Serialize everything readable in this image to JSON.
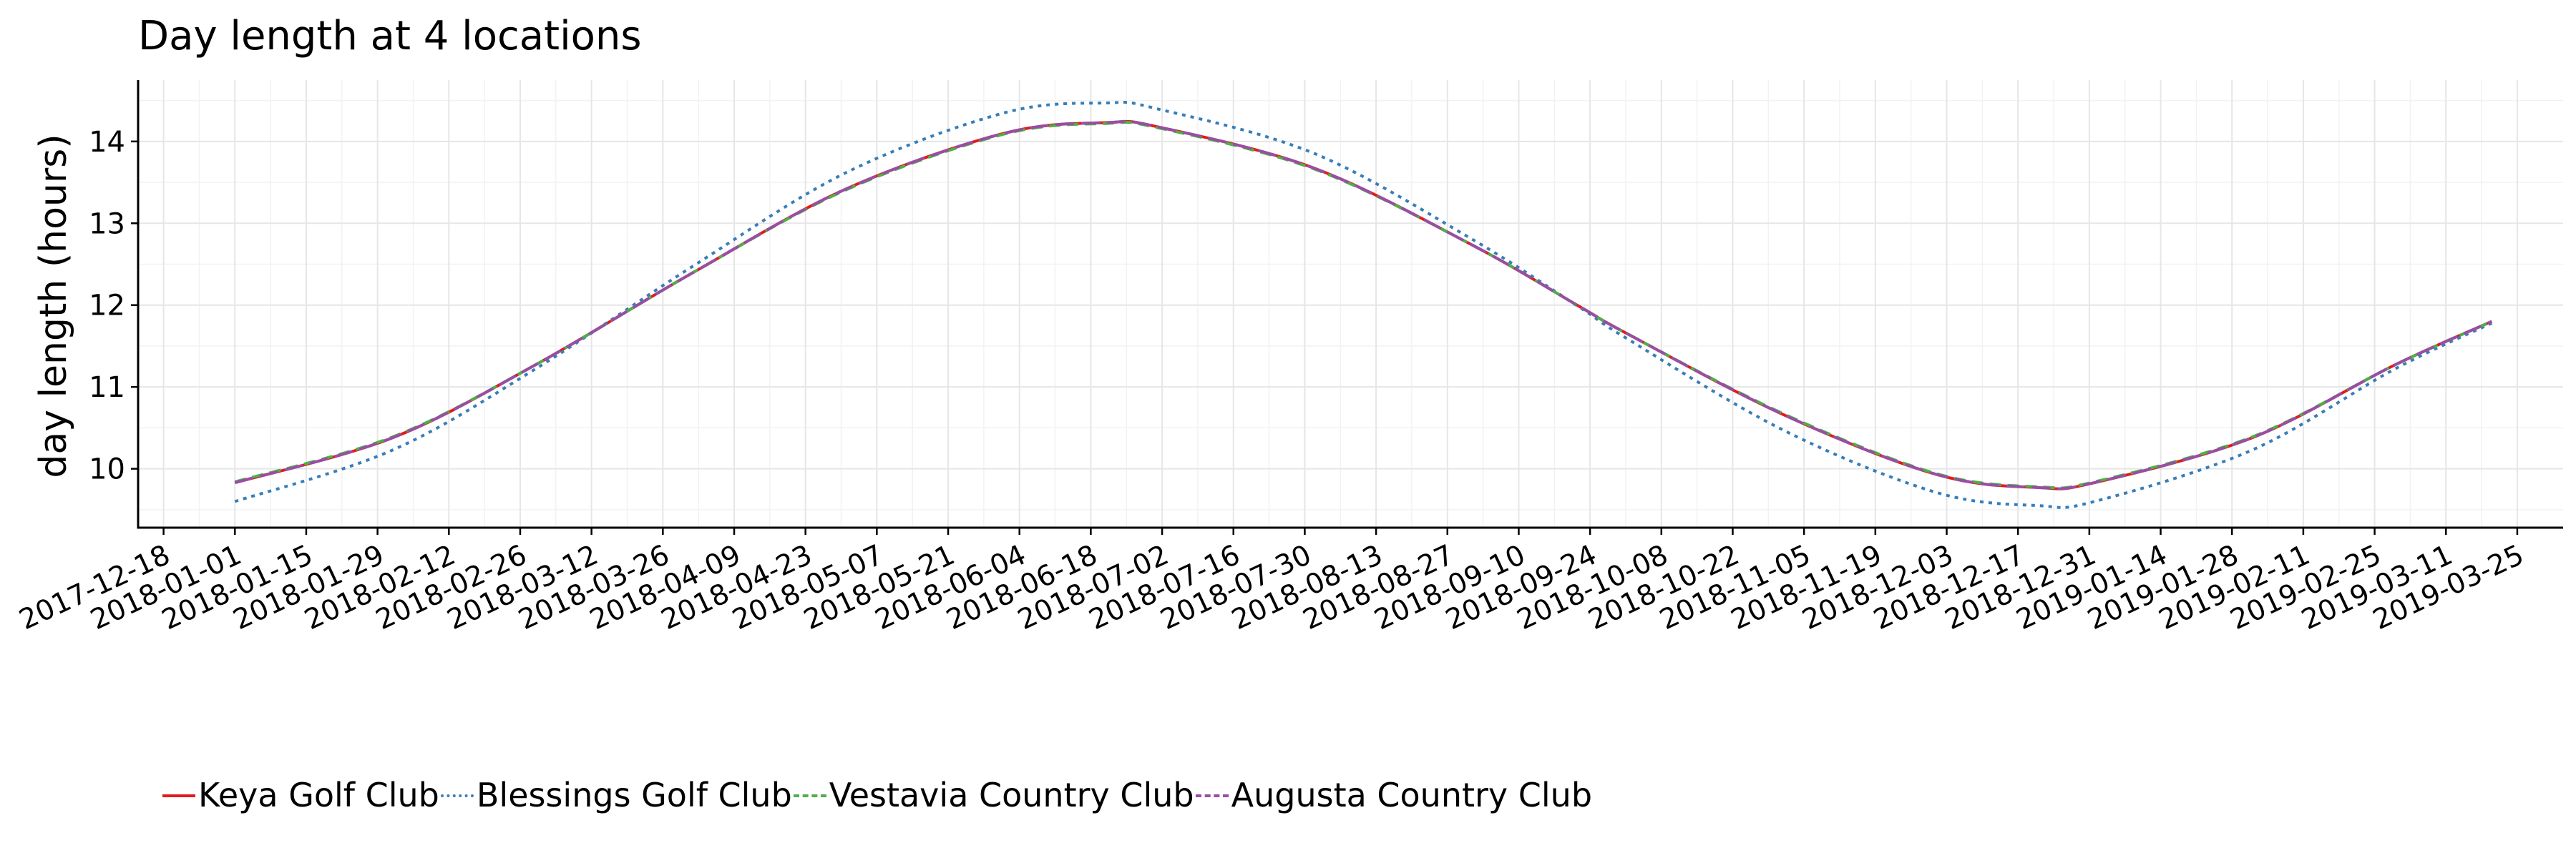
{
  "chart_data": {
    "type": "line",
    "title": "Day length at 4 locations",
    "xlabel": "",
    "ylabel": "day length (hours)",
    "x_ticks": [
      "2017-12-18",
      "2018-01-01",
      "2018-01-15",
      "2018-01-29",
      "2018-02-12",
      "2018-02-26",
      "2018-03-12",
      "2018-03-26",
      "2018-04-09",
      "2018-04-23",
      "2018-05-07",
      "2018-05-21",
      "2018-06-04",
      "2018-06-18",
      "2018-07-02",
      "2018-07-16",
      "2018-07-30",
      "2018-08-13",
      "2018-08-27",
      "2018-09-10",
      "2018-09-24",
      "2018-10-08",
      "2018-10-22",
      "2018-11-05",
      "2018-11-19",
      "2018-12-03",
      "2018-12-17",
      "2018-12-31",
      "2019-01-14",
      "2019-01-28",
      "2019-02-11",
      "2019-02-25",
      "2019-03-11",
      "2019-03-25"
    ],
    "y_ticks": [
      10,
      11,
      12,
      13,
      14
    ],
    "xlim": [
      "2017-12-13",
      "2019-04-03"
    ],
    "ylim": [
      9.28,
      14.75
    ],
    "x": [
      "2018-01-01",
      "2018-02-01",
      "2018-03-01",
      "2018-04-01",
      "2018-05-01",
      "2018-06-01",
      "2018-06-21",
      "2018-07-01",
      "2018-08-01",
      "2018-09-01",
      "2018-09-22",
      "2018-10-01",
      "2018-11-01",
      "2018-12-01",
      "2018-12-21",
      "2019-01-01",
      "2019-02-01",
      "2019-03-01",
      "2019-03-20"
    ],
    "series": [
      {
        "name": "Keya Golf Club",
        "color": "#e41a1c",
        "dash": "solid",
        "values": [
          9.83,
          10.38,
          11.27,
          12.4,
          13.42,
          14.1,
          14.23,
          14.18,
          13.67,
          12.73,
          11.98,
          11.66,
          10.66,
          9.93,
          9.77,
          9.83,
          10.38,
          11.27,
          11.8
        ]
      },
      {
        "name": "Blessings Golf Club",
        "color": "#377eb8",
        "dash": "dotted",
        "values": [
          9.6,
          10.23,
          11.22,
          12.48,
          13.62,
          14.35,
          14.47,
          14.4,
          13.85,
          12.8,
          11.97,
          11.6,
          10.47,
          9.71,
          9.55,
          9.6,
          10.23,
          11.22,
          11.78
        ]
      },
      {
        "name": "Vestavia Country Club",
        "color": "#4daf4a",
        "dash": "dashed",
        "values": [
          9.84,
          10.39,
          11.27,
          12.4,
          13.41,
          14.09,
          14.22,
          14.17,
          13.66,
          12.73,
          11.98,
          11.66,
          10.67,
          9.94,
          9.78,
          9.84,
          10.39,
          11.27,
          11.8
        ]
      },
      {
        "name": "Augusta Country Club",
        "color": "#984ea3",
        "dash": "longdash",
        "values": [
          9.83,
          10.38,
          11.27,
          12.4,
          13.42,
          14.1,
          14.23,
          14.18,
          13.67,
          12.73,
          11.98,
          11.66,
          10.66,
          9.93,
          9.77,
          9.83,
          10.38,
          11.27,
          11.8
        ]
      }
    ],
    "grid": true,
    "legend_position": "bottom"
  }
}
